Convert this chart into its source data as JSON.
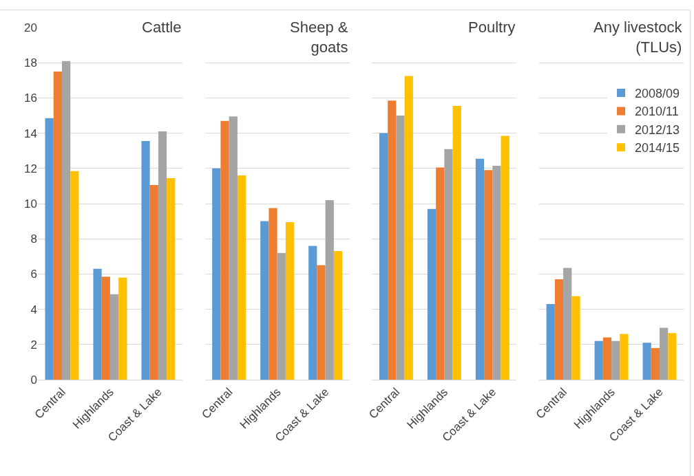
{
  "chart_data": [
    {
      "type": "bar",
      "title": "Cattle",
      "categories": [
        "Central",
        "Highlands",
        "Coast & Lake"
      ],
      "ylim": [
        0,
        20
      ],
      "yticks": [
        0,
        2,
        4,
        6,
        8,
        10,
        12,
        14,
        16,
        18,
        20
      ],
      "grid": "y",
      "legend": "top right",
      "series": [
        {
          "name": "2008/09",
          "color": "#5b9bd5",
          "values": [
            14.85,
            6.3,
            13.55
          ]
        },
        {
          "name": "2010/11",
          "color": "#ed7d31",
          "values": [
            17.5,
            5.85,
            11.05
          ]
        },
        {
          "name": "2012/13",
          "color": "#a5a5a5",
          "values": [
            18.1,
            4.85,
            14.1
          ]
        },
        {
          "name": "2014/15",
          "color": "#ffc000",
          "values": [
            11.85,
            5.8,
            11.45
          ]
        }
      ]
    },
    {
      "type": "bar",
      "title": "Sheep &\ngoats",
      "categories": [
        "Central",
        "Highlands",
        "Coast & Lake"
      ],
      "ylim": [
        0,
        20
      ],
      "yticks": [
        0,
        2,
        4,
        6,
        8,
        10,
        12,
        14,
        16,
        18,
        20
      ],
      "grid": "y",
      "legend": "top right",
      "tick_labels": "x",
      "series": [
        {
          "name": "2008/09",
          "color": "#5b9bd5",
          "values": [
            12.0,
            9.0,
            7.6
          ]
        },
        {
          "name": "2010/11",
          "color": "#ed7d31",
          "values": [
            14.7,
            9.75,
            6.5
          ]
        },
        {
          "name": "2012/13",
          "color": "#a5a5a5",
          "values": [
            14.95,
            7.2,
            10.2
          ]
        },
        {
          "name": "2014/15",
          "color": "#ffc000",
          "values": [
            11.6,
            8.95,
            7.3
          ]
        }
      ]
    },
    {
      "type": "bar",
      "title": "Poultry",
      "categories": [
        "Central",
        "Highlands",
        "Coast & Lake"
      ],
      "ylim": [
        0,
        20
      ],
      "yticks": [
        0,
        2,
        4,
        6,
        8,
        10,
        12,
        14,
        16,
        18,
        20
      ],
      "grid": "y",
      "legend": "top right",
      "tick_labels": "x",
      "series": [
        {
          "name": "2008/09",
          "color": "#5b9bd5",
          "values": [
            14.0,
            9.7,
            12.55
          ]
        },
        {
          "name": "2010/11",
          "color": "#ed7d31",
          "values": [
            15.85,
            12.05,
            11.9
          ]
        },
        {
          "name": "2012/13",
          "color": "#a5a5a5",
          "values": [
            15.0,
            13.1,
            12.15
          ]
        },
        {
          "name": "2014/15",
          "color": "#ffc000",
          "values": [
            17.25,
            15.55,
            13.85
          ]
        }
      ]
    },
    {
      "type": "bar",
      "title": "Any livestock\n(TLUs)",
      "categories": [
        "Central",
        "Highlands",
        "Coast & Lake"
      ],
      "ylim": [
        0,
        20
      ],
      "yticks": [
        0,
        2,
        4,
        6,
        8,
        10,
        12,
        14,
        16,
        18,
        20
      ],
      "grid": "y",
      "legend": "top right",
      "tick_labels": "x",
      "series": [
        {
          "name": "2008/09",
          "color": "#5b9bd5",
          "values": [
            4.3,
            2.2,
            2.1
          ]
        },
        {
          "name": "2010/11",
          "color": "#ed7d31",
          "values": [
            5.7,
            2.4,
            1.8
          ]
        },
        {
          "name": "2012/13",
          "color": "#a5a5a5",
          "values": [
            6.35,
            2.2,
            2.95
          ]
        },
        {
          "name": "2014/15",
          "color": "#ffc000",
          "values": [
            4.75,
            2.6,
            2.65
          ]
        }
      ]
    }
  ]
}
